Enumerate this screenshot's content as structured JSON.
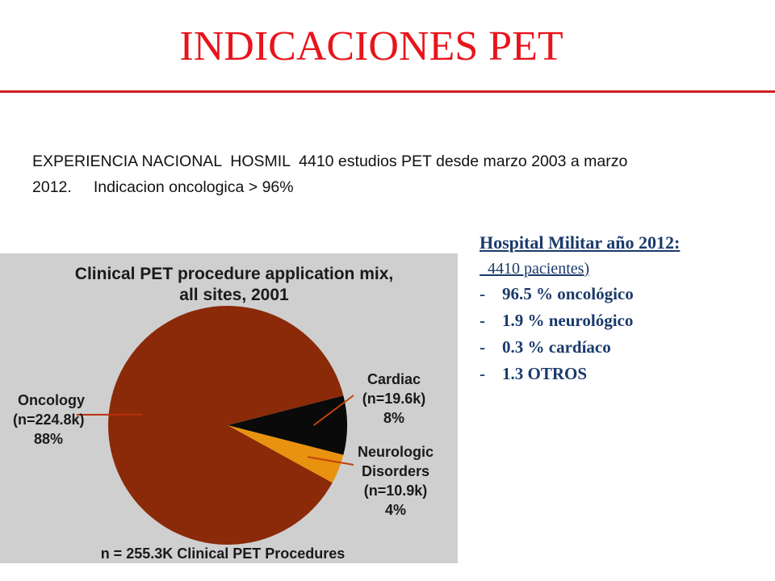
{
  "slide": {
    "title": "INDICACIONES PET",
    "intro_line1": "EXPERIENCIA NACIONAL  HOSMIL  4410 estudios PET desde marzo 2003 a marzo",
    "intro_line2": "2012.     Indicacion oncologica > 96%"
  },
  "stats": {
    "heading": "Hospital Militar año 2012:",
    "subheading": "  4410 pacientes)",
    "items": [
      {
        "dash": "-",
        "text": "96.5 % oncológico"
      },
      {
        "dash": "-",
        "text": "1.9 % neurológico"
      },
      {
        "dash": "-",
        "text": "0.3 % cardíaco"
      },
      {
        "dash": "-",
        "text": "1.3 OTROS"
      }
    ]
  },
  "chart_data": {
    "type": "pie",
    "title_line1": "Clinical PET procedure application mix,",
    "title_line2": "all sites, 2001",
    "footer": "n = 255.3K Clinical PET Procedures",
    "slices": [
      {
        "name": "Oncology",
        "n": "(n=224.8k)",
        "pct": "88%",
        "value": 88,
        "color": "#8b2a08"
      },
      {
        "name": "Cardiac",
        "n": "(n=19.6k)",
        "pct": "8%",
        "value": 8,
        "color": "#0a0a0a"
      },
      {
        "name": "Neurologic Disorders",
        "name_line1": "Neurologic",
        "name_line2": "Disorders",
        "n": "(n=10.9k)",
        "pct": "4%",
        "value": 4,
        "color": "#e8920f"
      }
    ]
  }
}
